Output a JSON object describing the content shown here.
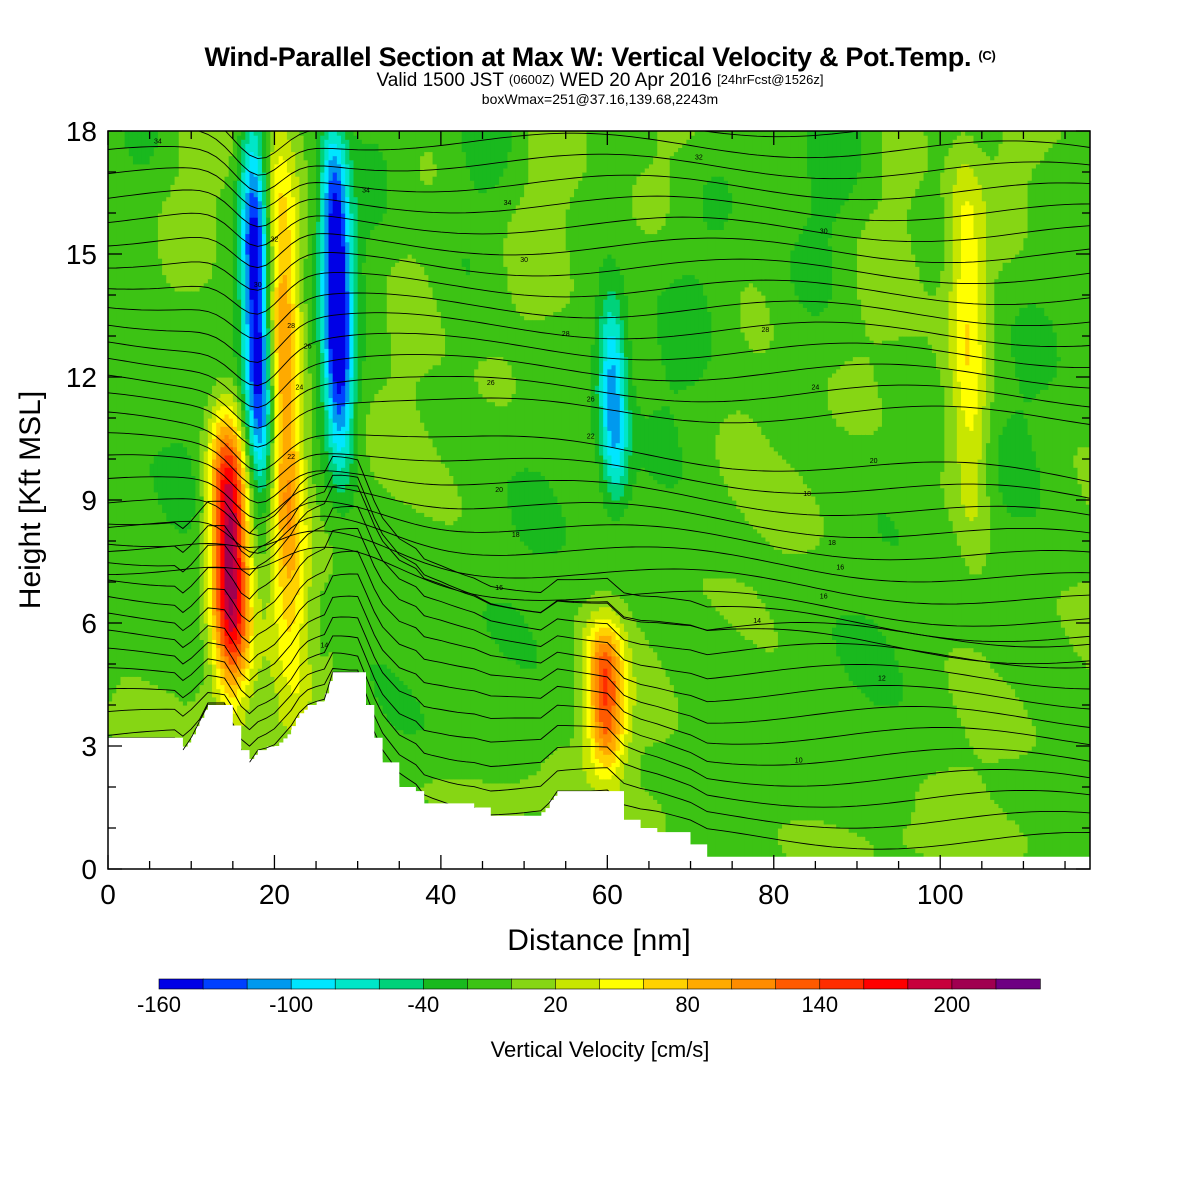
{
  "header": {
    "title": "Wind-Parallel Section at Max W: Vertical Velocity & Pot.Temp.",
    "title_mark": "(C)",
    "valid_prefix": "Valid 1500 JST",
    "valid_zulu": "(0600Z)",
    "valid_date": "WED 20 Apr 2016",
    "forecast": "[24hrFcst@1526z]",
    "boxwmax": "boxWmax=251@37.16,139.68,2243m"
  },
  "chart_data": {
    "type": "heatmap",
    "title": "Wind-Parallel Section at Max W: Vertical Velocity & Pot.Temp.",
    "xlabel": "Distance [nm]",
    "ylabel": "Height [Kft MSL]",
    "xlim": [
      0,
      118
    ],
    "ylim": [
      0,
      18
    ],
    "x_ticks": [
      0,
      20,
      40,
      60,
      80,
      100
    ],
    "y_ticks": [
      0,
      3,
      6,
      9,
      12,
      15,
      18
    ],
    "field": "Vertical Velocity [cm/s]",
    "colorbar": {
      "label": "Vertical Velocity [cm/s]",
      "tick_values": [
        -160,
        -100,
        -40,
        20,
        80,
        140,
        200
      ],
      "tick_labels": [
        "-160",
        "-100",
        "-40",
        "20",
        "80",
        "140",
        "200"
      ],
      "levels": [
        -160,
        -140,
        -120,
        -100,
        -80,
        -60,
        -40,
        -20,
        0,
        20,
        40,
        60,
        80,
        100,
        120,
        140,
        160,
        180,
        200,
        220,
        240
      ],
      "colors": [
        "#0000e6",
        "#0040ff",
        "#0099ee",
        "#00e6ff",
        "#00e6c8",
        "#00d27a",
        "#19b91e",
        "#3cc314",
        "#86d614",
        "#c8e600",
        "#ffff00",
        "#ffd200",
        "#ffaa00",
        "#ff8c00",
        "#ff5a00",
        "#ff2d00",
        "#ff0000",
        "#c8003c",
        "#a00050",
        "#6e0082"
      ]
    },
    "updrafts": [
      {
        "x": 15,
        "z_bottom": 4.5,
        "z_top": 11,
        "peak": 220
      },
      {
        "x": 22,
        "z_bottom": 5,
        "z_top": 18,
        "peak": 110
      },
      {
        "x": 60,
        "z_bottom": 2.5,
        "z_top": 6,
        "peak": 140
      },
      {
        "x": 104,
        "z_bottom": 8,
        "z_top": 18,
        "peak": 60
      }
    ],
    "downdrafts": [
      {
        "x": 18.5,
        "z_bottom": 9,
        "z_top": 18,
        "peak": -160
      },
      {
        "x": 28,
        "z_bottom": 10,
        "z_top": 18,
        "peak": -160
      },
      {
        "x": 61,
        "z_bottom": 9,
        "z_top": 14,
        "peak": -100
      }
    ],
    "theta_contour_labels": [
      "34",
      "34",
      "34",
      "32",
      "32",
      "30",
      "30",
      "30",
      "28",
      "28",
      "28",
      "26",
      "26",
      "26",
      "24",
      "24",
      "22",
      "22",
      "20",
      "20",
      "18",
      "18",
      "18",
      "16",
      "16",
      "16",
      "14",
      "14",
      "12",
      "10"
    ],
    "terrain_kft": [
      [
        0,
        3.2
      ],
      [
        8,
        3.2
      ],
      [
        9,
        2.9
      ],
      [
        10,
        3.2
      ],
      [
        11,
        3.6
      ],
      [
        12,
        4.0
      ],
      [
        14,
        4.0
      ],
      [
        15,
        3.5
      ],
      [
        16,
        2.9
      ],
      [
        17,
        2.6
      ],
      [
        18,
        2.9
      ],
      [
        20,
        3.0
      ],
      [
        22,
        3.4
      ],
      [
        23,
        3.8
      ],
      [
        24,
        4.0
      ],
      [
        26,
        4.1
      ],
      [
        27,
        4.8
      ],
      [
        30,
        4.8
      ],
      [
        31,
        4.0
      ],
      [
        32,
        3.2
      ],
      [
        33,
        2.6
      ],
      [
        35,
        2.0
      ],
      [
        37,
        1.9
      ],
      [
        38,
        1.6
      ],
      [
        40,
        1.6
      ],
      [
        44,
        1.5
      ],
      [
        46,
        1.3
      ],
      [
        52,
        1.3
      ],
      [
        54,
        1.9
      ],
      [
        60,
        1.9
      ],
      [
        62,
        1.2
      ],
      [
        64,
        1.0
      ],
      [
        66,
        0.9
      ],
      [
        70,
        0.6
      ],
      [
        72,
        0.3
      ],
      [
        118,
        0.3
      ]
    ]
  }
}
